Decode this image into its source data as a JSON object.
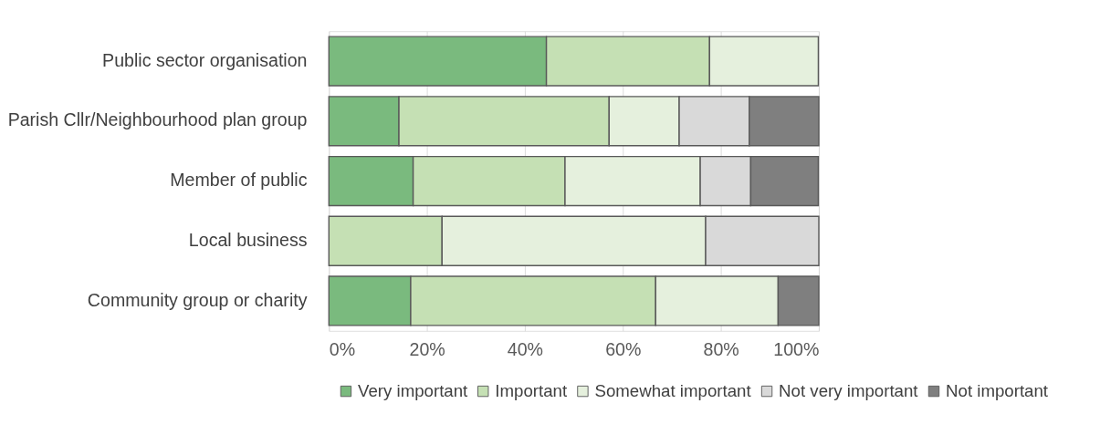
{
  "chart_data": {
    "type": "bar",
    "orientation": "horizontal",
    "stacked": true,
    "categories": [
      "Public sector organisation",
      "Parish Cllr/Neighbourhood plan group",
      "Member of public",
      "Local business",
      "Community group or charity"
    ],
    "series": [
      {
        "name": "Very important",
        "color": "#7aba7e",
        "values": [
          44.4,
          14.3,
          17.2,
          null,
          16.7
        ]
      },
      {
        "name": "Important",
        "color": "#c5e0b4",
        "values": [
          33.3,
          42.9,
          31.0,
          23.1,
          50.0
        ]
      },
      {
        "name": "Somewhat important",
        "color": "#e5f0dd",
        "values": [
          22.2,
          14.3,
          27.6,
          53.8,
          25.0
        ]
      },
      {
        "name": "Not very important",
        "color": "#d9d9d9",
        "values": [
          null,
          14.3,
          10.3,
          23.1,
          null
        ]
      },
      {
        "name": "Not important",
        "color": "#7f7f7f",
        "values": [
          null,
          14.2,
          13.8,
          null,
          8.3
        ]
      }
    ],
    "xlim": [
      0,
      100
    ],
    "xticks": [
      {
        "value": 0,
        "label": "0%"
      },
      {
        "value": 20,
        "label": "20%"
      },
      {
        "value": 40,
        "label": "40%"
      },
      {
        "value": 60,
        "label": "60%"
      },
      {
        "value": 80,
        "label": "80%"
      },
      {
        "value": 100,
        "label": "100%"
      }
    ],
    "grid": "x",
    "legend": "bottom"
  }
}
